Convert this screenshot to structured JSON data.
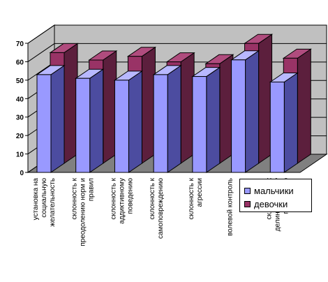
{
  "chart_data": {
    "type": "bar",
    "style": "3d-clustered-column",
    "categories": [
      "установка на социальную желательность",
      "склонность к преодолению норм и правил",
      "склонность к аддиктивному поведению",
      "склонность к самоповреждению",
      "склонность к агрессии",
      "волевой контроль",
      "склонность к делинквентному поведению"
    ],
    "series": [
      {
        "name": "мальчики",
        "values": [
          53,
          51,
          50,
          53,
          52,
          61,
          49
        ]
      },
      {
        "name": "девочки",
        "values": [
          60,
          56,
          58,
          55,
          54,
          65,
          57
        ]
      }
    ],
    "y_ticks": [
      "0",
      "10",
      "20",
      "30",
      "40",
      "50",
      "60",
      "70"
    ],
    "ylim": [
      0,
      70
    ],
    "grid": true,
    "legend_position": "bottom-right",
    "colors": {
      "series_1_front": "#9999FF",
      "series_1_top": "#B8B8FF",
      "series_1_side": "#4C4CA0",
      "series_2_front": "#993366",
      "series_2_top": "#B04C7E",
      "series_2_side": "#5C1F3D",
      "back_wall": "#C0C0C0",
      "floor": "#808080"
    }
  }
}
